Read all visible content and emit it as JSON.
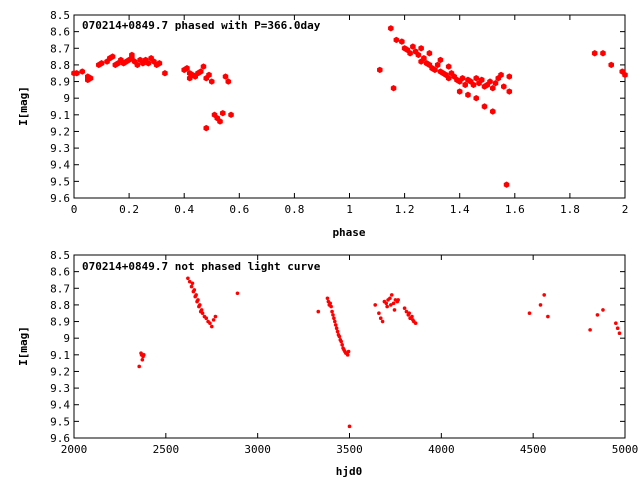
{
  "colors": {
    "points": "#ff0000",
    "axes": "#000000",
    "background": "#ffffff"
  },
  "chart_data": [
    {
      "type": "scatter",
      "title": "070214+0849.7 phased with P=366.0day",
      "xlabel": "phase",
      "ylabel": "I[mag]",
      "xlim": [
        0,
        2
      ],
      "ylim": [
        9.6,
        8.5
      ],
      "y_inverted": true,
      "grid": false,
      "legend": "none",
      "marker": "filled-hexagon",
      "xticks": [
        "0",
        "0.2",
        "0.4",
        "0.6",
        "0.8",
        "1",
        "1.2",
        "1.4",
        "1.6",
        "1.8",
        "2"
      ],
      "yticks": [
        "8.5",
        "8.6",
        "8.7",
        "8.8",
        "8.9",
        "9",
        "9.1",
        "9.2",
        "9.3",
        "9.4",
        "9.5",
        "9.6"
      ],
      "x": [
        0.0,
        0.01,
        0.03,
        0.05,
        0.05,
        0.06,
        0.09,
        0.1,
        0.12,
        0.13,
        0.14,
        0.15,
        0.16,
        0.17,
        0.18,
        0.19,
        0.2,
        0.21,
        0.21,
        0.22,
        0.23,
        0.24,
        0.25,
        0.26,
        0.27,
        0.28,
        0.29,
        0.3,
        0.31,
        0.33,
        0.4,
        0.41,
        0.42,
        0.42,
        0.43,
        0.44,
        0.45,
        0.46,
        0.47,
        0.48,
        0.48,
        0.49,
        0.5,
        0.51,
        0.52,
        0.53,
        0.54,
        0.55,
        0.56,
        0.57,
        1.11,
        1.15,
        1.16,
        1.17,
        1.19,
        1.2,
        1.21,
        1.22,
        1.23,
        1.24,
        1.25,
        1.26,
        1.27,
        1.28,
        1.29,
        1.3,
        1.31,
        1.32,
        1.33,
        1.34,
        1.35,
        1.36,
        1.37,
        1.38,
        1.39,
        1.4,
        1.41,
        1.42,
        1.43,
        1.44,
        1.45,
        1.46,
        1.47,
        1.48,
        1.49,
        1.5,
        1.51,
        1.52,
        1.53,
        1.54,
        1.55,
        1.56,
        1.57,
        1.58,
        1.58,
        1.26,
        1.29,
        1.33,
        1.36,
        1.4,
        1.43,
        1.46,
        1.49,
        1.52,
        1.89,
        1.92,
        1.95,
        1.99,
        2.0
      ],
      "y": [
        8.85,
        8.85,
        8.84,
        8.89,
        8.87,
        8.88,
        8.8,
        8.79,
        8.78,
        8.76,
        8.75,
        8.8,
        8.79,
        8.77,
        8.79,
        8.78,
        8.77,
        8.76,
        8.74,
        8.78,
        8.8,
        8.77,
        8.79,
        8.77,
        8.79,
        8.76,
        8.78,
        8.8,
        8.79,
        8.85,
        8.83,
        8.82,
        8.85,
        8.88,
        8.86,
        8.87,
        8.85,
        8.84,
        8.81,
        9.18,
        8.88,
        8.86,
        8.9,
        9.1,
        9.12,
        9.14,
        9.09,
        8.87,
        8.9,
        9.1,
        8.83,
        8.58,
        8.94,
        8.65,
        8.66,
        8.7,
        8.71,
        8.73,
        8.69,
        8.72,
        8.74,
        8.78,
        8.76,
        8.79,
        8.8,
        8.82,
        8.83,
        8.8,
        8.84,
        8.85,
        8.86,
        8.88,
        8.85,
        8.87,
        8.89,
        8.9,
        8.88,
        8.92,
        8.89,
        8.9,
        8.92,
        8.88,
        8.91,
        8.89,
        8.93,
        8.92,
        8.9,
        8.94,
        8.91,
        8.88,
        8.86,
        8.93,
        9.52,
        8.87,
        8.96,
        8.7,
        8.73,
        8.77,
        8.81,
        8.96,
        8.98,
        9.0,
        9.05,
        9.08,
        8.73,
        8.73,
        8.8,
        8.84,
        8.86
      ]
    },
    {
      "type": "scatter",
      "title": "070214+0849.7 not phased light curve",
      "xlabel": "hjd0",
      "ylabel": "I[mag]",
      "xlim": [
        2000,
        5000
      ],
      "ylim": [
        9.6,
        8.5
      ],
      "y_inverted": true,
      "grid": false,
      "legend": "none",
      "marker": "dot",
      "xticks": [
        "2000",
        "2500",
        "3000",
        "3500",
        "4000",
        "4500",
        "5000"
      ],
      "yticks": [
        "8.5",
        "8.6",
        "8.7",
        "8.8",
        "8.9",
        "9",
        "9.1",
        "9.2",
        "9.3",
        "9.4",
        "9.5",
        "9.6"
      ],
      "x": [
        2355,
        2365,
        2368,
        2372,
        2376,
        2380,
        2620,
        2630,
        2640,
        2650,
        2660,
        2670,
        2680,
        2690,
        2700,
        2710,
        2720,
        2730,
        2740,
        2750,
        2760,
        2770,
        2645,
        2655,
        2665,
        2675,
        2685,
        2695,
        2890,
        3330,
        3380,
        3385,
        3390,
        3395,
        3400,
        3405,
        3410,
        3415,
        3420,
        3425,
        3430,
        3435,
        3440,
        3445,
        3450,
        3455,
        3460,
        3465,
        3470,
        3475,
        3480,
        3485,
        3490,
        3495,
        3500,
        3640,
        3660,
        3670,
        3680,
        3690,
        3700,
        3710,
        3720,
        3730,
        3740,
        3750,
        3760,
        3705,
        3725,
        3745,
        3765,
        3800,
        3810,
        3820,
        3830,
        3840,
        3850,
        3860,
        3825,
        3845,
        4480,
        4540,
        4560,
        4580,
        4810,
        4850,
        4880,
        4950,
        4960,
        4970
      ],
      "y": [
        9.17,
        9.09,
        9.1,
        9.13,
        9.11,
        9.1,
        8.64,
        8.66,
        8.69,
        8.72,
        8.75,
        8.78,
        8.81,
        8.84,
        8.85,
        8.87,
        8.88,
        8.9,
        8.91,
        8.93,
        8.89,
        8.87,
        8.67,
        8.71,
        8.74,
        8.77,
        8.8,
        8.83,
        8.73,
        8.84,
        8.76,
        8.78,
        8.8,
        8.79,
        8.81,
        8.84,
        8.86,
        8.88,
        8.9,
        8.92,
        8.94,
        8.96,
        8.98,
        8.99,
        9.01,
        9.02,
        9.04,
        9.06,
        9.07,
        9.08,
        9.09,
        9.09,
        9.1,
        9.08,
        9.53,
        8.8,
        8.85,
        8.88,
        8.9,
        8.78,
        8.79,
        8.77,
        8.76,
        8.74,
        8.79,
        8.77,
        8.78,
        8.81,
        8.8,
        8.83,
        8.77,
        8.82,
        8.84,
        8.86,
        8.88,
        8.87,
        8.9,
        8.91,
        8.85,
        8.89,
        8.85,
        8.8,
        8.74,
        8.87,
        8.95,
        8.86,
        8.83,
        8.91,
        8.94,
        8.97
      ]
    }
  ]
}
